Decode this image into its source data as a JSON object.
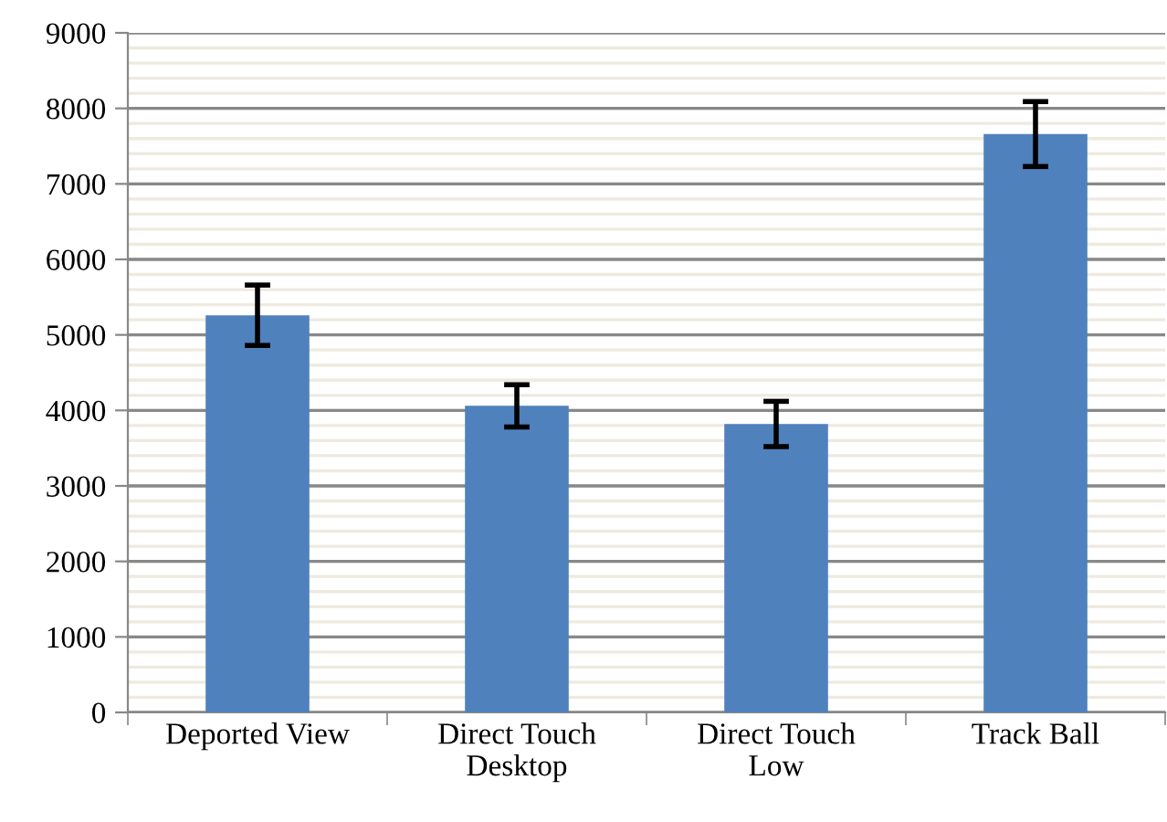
{
  "chart_data": {
    "type": "bar",
    "categories": [
      "Deported View",
      "Direct Touch\nDesktop",
      "Direct Touch\nLow",
      "Track Ball"
    ],
    "values": [
      5260,
      4060,
      3820,
      7660
    ],
    "errors": [
      400,
      280,
      300,
      430
    ],
    "color": "#4f81bd",
    "ylim": [
      0,
      9000
    ],
    "yticks": [
      0,
      1000,
      2000,
      3000,
      4000,
      5000,
      6000,
      7000,
      8000,
      9000
    ],
    "grid": "y"
  }
}
